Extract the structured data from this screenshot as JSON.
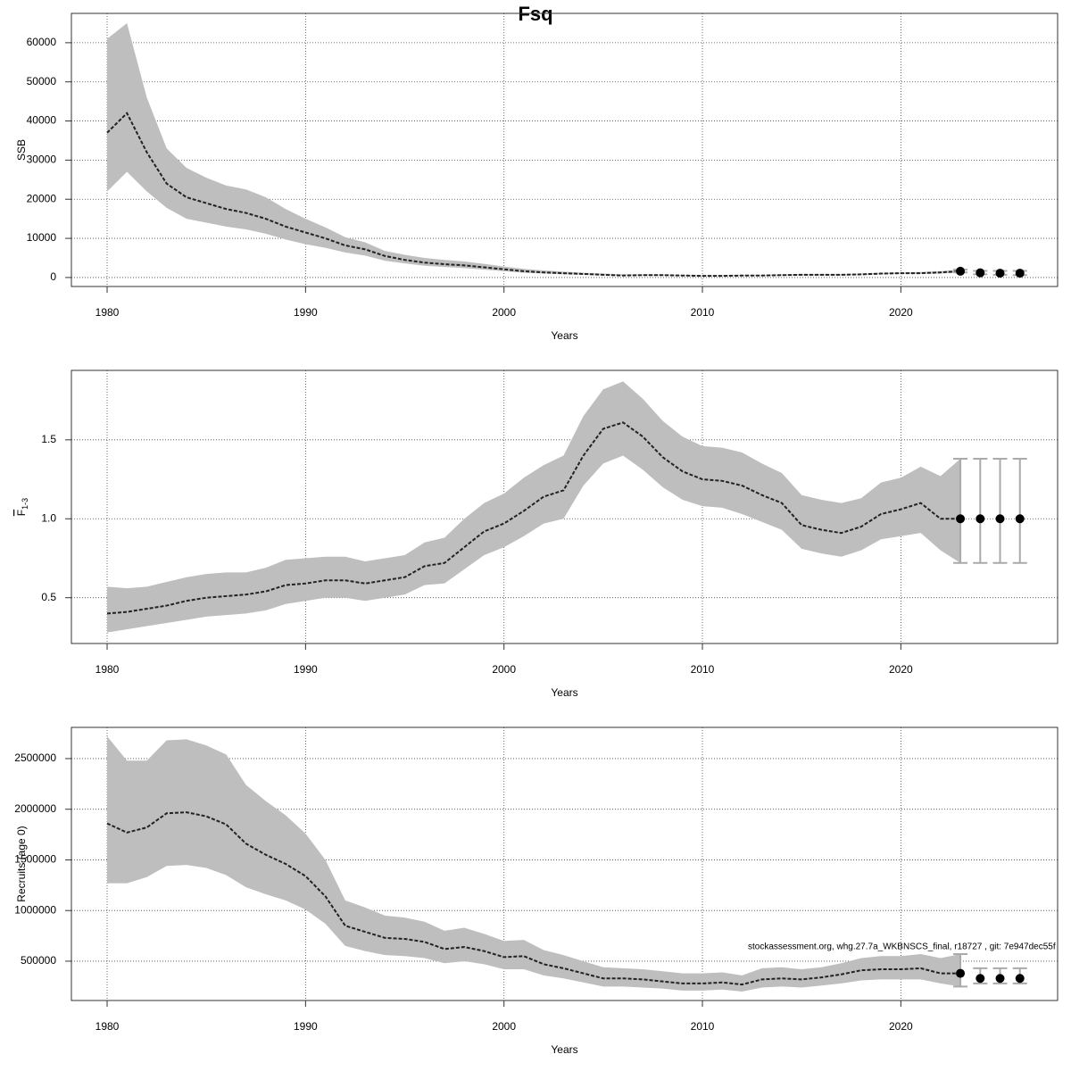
{
  "title": "Fsq",
  "footnote": "stockassessment.org, whg.27.7a_WKBNSCS_final, r18727 , git: 7e947dec55f",
  "chart_data": [
    {
      "type": "line",
      "ylabel": "SSB",
      "xlabel": "Years",
      "x": [
        1980,
        1981,
        1982,
        1983,
        1984,
        1985,
        1986,
        1987,
        1988,
        1989,
        1990,
        1991,
        1992,
        1993,
        1994,
        1995,
        1996,
        1997,
        1998,
        1999,
        2000,
        2001,
        2002,
        2003,
        2004,
        2005,
        2006,
        2007,
        2008,
        2009,
        2010,
        2011,
        2012,
        2013,
        2014,
        2015,
        2016,
        2017,
        2018,
        2019,
        2020,
        2021,
        2022,
        2023
      ],
      "values": [
        37000,
        42000,
        32000,
        24000,
        20500,
        19000,
        17500,
        16500,
        15000,
        13000,
        11500,
        10000,
        8200,
        7200,
        5500,
        4500,
        3800,
        3400,
        3100,
        2600,
        2100,
        1600,
        1300,
        1100,
        900,
        700,
        500,
        600,
        600,
        500,
        400,
        400,
        500,
        500,
        600,
        700,
        700,
        700,
        800,
        1000,
        1100,
        1100,
        1300,
        1600
      ],
      "upper": [
        61000,
        65000,
        46000,
        33000,
        28000,
        25500,
        23500,
        22500,
        20500,
        17500,
        15000,
        12800,
        10300,
        9000,
        6800,
        5800,
        5000,
        4500,
        4100,
        3500,
        2800,
        2200,
        1800,
        1500,
        1200,
        1000,
        800,
        800,
        800,
        700,
        600,
        600,
        700,
        700,
        800,
        900,
        900,
        900,
        1000,
        1200,
        1300,
        1400,
        1600,
        2000
      ],
      "lower": [
        22000,
        27000,
        22000,
        17800,
        15000,
        14000,
        13000,
        12300,
        11200,
        9700,
        8500,
        7600,
        6400,
        5600,
        4300,
        3600,
        3000,
        2700,
        2400,
        2000,
        1600,
        1200,
        1000,
        800,
        700,
        500,
        400,
        400,
        400,
        350,
        300,
        300,
        350,
        350,
        400,
        500,
        500,
        500,
        600,
        800,
        900,
        900,
        1000,
        1300
      ],
      "proj_x": [
        2023,
        2024,
        2025,
        2026
      ],
      "proj_values": [
        1600,
        1200,
        1100,
        1100
      ],
      "proj_lower": [
        1300,
        800,
        700,
        600
      ],
      "proj_upper": [
        2000,
        1700,
        1700,
        1700
      ],
      "xlim": [
        1978.2,
        2027.9
      ],
      "ylim": [
        -2300,
        67500
      ],
      "xticks": [
        1980,
        1990,
        2000,
        2010,
        2020
      ],
      "yticks": [
        0,
        10000,
        20000,
        30000,
        40000,
        50000,
        60000
      ],
      "grid": true,
      "band_color": "#bebebe",
      "line_color": "#222222",
      "bar_color": "#aaaaaa"
    },
    {
      "type": "line",
      "ylabel": "F",
      "ylabel_sub": "1-3",
      "xlabel": "Years",
      "x": [
        1980,
        1981,
        1982,
        1983,
        1984,
        1985,
        1986,
        1987,
        1988,
        1989,
        1990,
        1991,
        1992,
        1993,
        1994,
        1995,
        1996,
        1997,
        1998,
        1999,
        2000,
        2001,
        2002,
        2003,
        2004,
        2005,
        2006,
        2007,
        2008,
        2009,
        2010,
        2011,
        2012,
        2013,
        2014,
        2015,
        2016,
        2017,
        2018,
        2019,
        2020,
        2021,
        2022,
        2023
      ],
      "values": [
        0.4,
        0.41,
        0.43,
        0.45,
        0.48,
        0.5,
        0.51,
        0.52,
        0.54,
        0.58,
        0.59,
        0.61,
        0.61,
        0.59,
        0.61,
        0.63,
        0.7,
        0.72,
        0.82,
        0.92,
        0.97,
        1.05,
        1.14,
        1.18,
        1.4,
        1.57,
        1.61,
        1.52,
        1.39,
        1.3,
        1.25,
        1.24,
        1.21,
        1.15,
        1.1,
        0.96,
        0.93,
        0.91,
        0.95,
        1.03,
        1.06,
        1.1,
        1.0,
        1.0
      ],
      "upper": [
        0.57,
        0.56,
        0.57,
        0.6,
        0.63,
        0.65,
        0.66,
        0.66,
        0.69,
        0.74,
        0.75,
        0.76,
        0.76,
        0.73,
        0.75,
        0.77,
        0.85,
        0.88,
        1.0,
        1.1,
        1.16,
        1.26,
        1.34,
        1.4,
        1.65,
        1.82,
        1.87,
        1.76,
        1.62,
        1.52,
        1.46,
        1.45,
        1.42,
        1.35,
        1.29,
        1.15,
        1.12,
        1.1,
        1.13,
        1.23,
        1.26,
        1.33,
        1.27,
        1.38
      ],
      "lower": [
        0.28,
        0.3,
        0.32,
        0.34,
        0.36,
        0.38,
        0.39,
        0.4,
        0.42,
        0.46,
        0.48,
        0.5,
        0.5,
        0.48,
        0.5,
        0.52,
        0.58,
        0.59,
        0.68,
        0.77,
        0.82,
        0.89,
        0.97,
        1.0,
        1.21,
        1.35,
        1.4,
        1.31,
        1.2,
        1.12,
        1.08,
        1.07,
        1.03,
        0.98,
        0.93,
        0.81,
        0.78,
        0.76,
        0.8,
        0.87,
        0.89,
        0.91,
        0.8,
        0.72
      ],
      "proj_x": [
        2023,
        2024,
        2025,
        2026
      ],
      "proj_values": [
        1.0,
        1.0,
        1.0,
        1.0
      ],
      "proj_lower": [
        0.72,
        0.72,
        0.72,
        0.72
      ],
      "proj_upper": [
        1.38,
        1.38,
        1.38,
        1.38
      ],
      "xlim": [
        1978.2,
        2027.9
      ],
      "ylim": [
        0.21,
        1.94
      ],
      "xticks": [
        1980,
        1990,
        2000,
        2010,
        2020
      ],
      "yticks": [
        0.5,
        {
          "value": 1,
          "label": "1.0"
        },
        1.5
      ],
      "grid": true,
      "band_color": "#bebebe",
      "line_color": "#222222",
      "bar_color": "#aaaaaa"
    },
    {
      "type": "line",
      "ylabel": "Recruits (age 0)",
      "xlabel": "Years",
      "x": [
        1980,
        1981,
        1982,
        1983,
        1984,
        1985,
        1986,
        1987,
        1988,
        1989,
        1990,
        1991,
        1992,
        1993,
        1994,
        1995,
        1996,
        1997,
        1998,
        1999,
        2000,
        2001,
        2002,
        2003,
        2004,
        2005,
        2006,
        2007,
        2008,
        2009,
        2010,
        2011,
        2012,
        2013,
        2014,
        2015,
        2016,
        2017,
        2018,
        2019,
        2020,
        2021,
        2022,
        2023
      ],
      "values": [
        1860000,
        1770000,
        1820000,
        1960000,
        1970000,
        1930000,
        1850000,
        1660000,
        1550000,
        1460000,
        1340000,
        1140000,
        850000,
        790000,
        730000,
        720000,
        690000,
        620000,
        640000,
        600000,
        540000,
        550000,
        470000,
        430000,
        380000,
        330000,
        330000,
        320000,
        300000,
        280000,
        280000,
        290000,
        270000,
        320000,
        330000,
        320000,
        340000,
        370000,
        410000,
        420000,
        420000,
        430000,
        380000,
        380000
      ],
      "upper": [
        2720000,
        2480000,
        2480000,
        2680000,
        2690000,
        2630000,
        2540000,
        2240000,
        2080000,
        1940000,
        1760000,
        1500000,
        1100000,
        1030000,
        950000,
        930000,
        890000,
        800000,
        830000,
        770000,
        700000,
        710000,
        610000,
        560000,
        500000,
        440000,
        430000,
        420000,
        400000,
        380000,
        380000,
        390000,
        360000,
        430000,
        440000,
        420000,
        440000,
        480000,
        530000,
        550000,
        550000,
        570000,
        530000,
        570000
      ],
      "lower": [
        1270000,
        1270000,
        1330000,
        1440000,
        1450000,
        1420000,
        1350000,
        1230000,
        1160000,
        1100000,
        1010000,
        870000,
        650000,
        600000,
        560000,
        550000,
        530000,
        480000,
        500000,
        470000,
        420000,
        420000,
        360000,
        330000,
        290000,
        250000,
        250000,
        240000,
        230000,
        210000,
        210000,
        220000,
        200000,
        240000,
        250000,
        240000,
        260000,
        280000,
        310000,
        320000,
        320000,
        320000,
        280000,
        250000
      ],
      "proj_x": [
        2023,
        2024,
        2025,
        2026
      ],
      "proj_values": [
        380000,
        330000,
        330000,
        330000
      ],
      "proj_lower": [
        250000,
        280000,
        280000,
        280000
      ],
      "proj_upper": [
        570000,
        430000,
        430000,
        430000
      ],
      "xlim": [
        1978.2,
        2027.9
      ],
      "ylim": [
        112000,
        2808000
      ],
      "xticks": [
        1980,
        1990,
        2000,
        2010,
        2020
      ],
      "yticks": [
        500000,
        1000000,
        1500000,
        2000000,
        2500000
      ],
      "grid": true,
      "band_color": "#bebebe",
      "line_color": "#222222",
      "bar_color": "#aaaaaa"
    }
  ]
}
